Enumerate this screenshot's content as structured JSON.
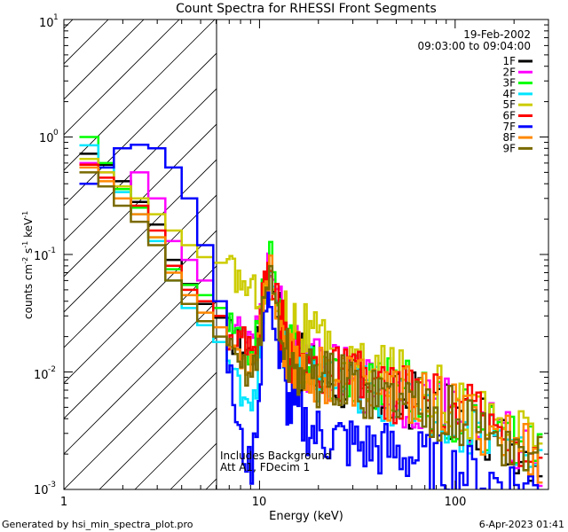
{
  "chart_data": {
    "type": "line",
    "title": "Count Spectra for RHESSI Front Segments",
    "xlabel": "Energy (keV)",
    "ylabel_parts": [
      "counts cm",
      "-2",
      " s",
      "-1",
      " keV",
      "-1"
    ],
    "xscale": "log",
    "yscale": "log",
    "xlim": [
      1,
      300
    ],
    "ylim": [
      0.001,
      10
    ],
    "x_ticks": [
      {
        "value": 1,
        "label": "1"
      },
      {
        "value": 10,
        "label": "10"
      },
      {
        "value": 100,
        "label": "100"
      }
    ],
    "y_ticks": [
      {
        "value": 0.001,
        "base": "10",
        "exp": "-3"
      },
      {
        "value": 0.01,
        "base": "10",
        "exp": "-2"
      },
      {
        "value": 0.1,
        "base": "10",
        "exp": "-1"
      },
      {
        "value": 1,
        "base": "10",
        "exp": "0"
      },
      {
        "value": 10,
        "base": "10",
        "exp": "1"
      }
    ],
    "hatched_region_keV": [
      1.2,
      6
    ],
    "date": "19-Feb-2002",
    "time_range": "09:03:00 to 09:04:00",
    "annotation_lines": [
      "Includes Background",
      "Att A1, FDecim 1"
    ],
    "footer_left": "Generated by hsi_min_spectra_plot.pro",
    "footer_right": "6-Apr-2023 01:41",
    "series": [
      {
        "name": "1F",
        "color": "#000000",
        "values": [
          0.72,
          0.58,
          0.42,
          0.28,
          0.18,
          0.09,
          0.056,
          0.038,
          0.029,
          0.022,
          0.018,
          0.016,
          0.014,
          0.02,
          0.05,
          0.075,
          0.03,
          0.015,
          0.012,
          0.01,
          0.009,
          0.008,
          0.007,
          0.006,
          0.0055,
          0.006,
          0.0045,
          0.004,
          0.003,
          0.0025,
          0.0018
        ]
      },
      {
        "name": "2F",
        "color": "#ff00ff",
        "values": [
          0.6,
          0.5,
          0.38,
          0.5,
          0.3,
          0.13,
          0.09,
          0.06,
          0.04,
          0.03,
          0.024,
          0.02,
          0.016,
          0.025,
          0.06,
          0.085,
          0.035,
          0.016,
          0.013,
          0.011,
          0.01,
          0.009,
          0.008,
          0.007,
          0.006,
          0.006,
          0.005,
          0.004,
          0.0033,
          0.0025,
          0.0018
        ]
      },
      {
        "name": "3F",
        "color": "#00ff00",
        "values": [
          1.0,
          0.6,
          0.36,
          0.25,
          0.14,
          0.075,
          0.055,
          0.045,
          0.035,
          0.025,
          0.02,
          0.017,
          0.015,
          0.022,
          0.07,
          0.095,
          0.032,
          0.016,
          0.013,
          0.011,
          0.0105,
          0.009,
          0.009,
          0.008,
          0.0075,
          0.006,
          0.005,
          0.004,
          0.0033,
          0.0025,
          0.0018
        ]
      },
      {
        "name": "4F",
        "color": "#00e5ff",
        "values": [
          0.85,
          0.55,
          0.34,
          0.22,
          0.13,
          0.06,
          0.035,
          0.025,
          0.018,
          0.012,
          0.008,
          0.007,
          0.006,
          0.01,
          0.04,
          0.06,
          0.025,
          0.012,
          0.01,
          0.009,
          0.008,
          0.0075,
          0.007,
          0.0065,
          0.006,
          0.0055,
          0.0045,
          0.0035,
          0.003,
          0.0022,
          0.0016
        ]
      },
      {
        "name": "5F",
        "color": "#cccc00",
        "values": [
          0.65,
          0.5,
          0.38,
          0.3,
          0.22,
          0.16,
          0.12,
          0.095,
          0.085,
          0.075,
          0.065,
          0.055,
          0.05,
          0.048,
          0.045,
          0.04,
          0.035,
          0.03,
          0.024,
          0.018,
          0.013,
          0.011,
          0.01,
          0.0095,
          0.009,
          0.008,
          0.0065,
          0.005,
          0.004,
          0.003,
          0.0022
        ]
      },
      {
        "name": "6F",
        "color": "#ff0000",
        "values": [
          0.58,
          0.45,
          0.3,
          0.26,
          0.16,
          0.08,
          0.05,
          0.04,
          0.03,
          0.022,
          0.02,
          0.018,
          0.016,
          0.022,
          0.06,
          0.08,
          0.03,
          0.015,
          0.012,
          0.011,
          0.0095,
          0.009,
          0.008,
          0.007,
          0.0065,
          0.006,
          0.005,
          0.0045,
          0.0035,
          0.0028,
          0.002
        ]
      },
      {
        "name": "7F",
        "color": "#0000ff",
        "values": [
          0.4,
          0.55,
          0.8,
          0.86,
          0.8,
          0.55,
          0.3,
          0.12,
          0.04,
          0.012,
          0.004,
          0.002,
          0.0015,
          0.006,
          0.03,
          0.045,
          0.012,
          0.005,
          0.004,
          0.003,
          0.0028,
          0.0025,
          0.0023,
          0.0022,
          0.002,
          0.0018,
          0.0016,
          0.0014,
          0.0012,
          0.0011,
          0.001
        ]
      },
      {
        "name": "8F",
        "color": "#ff8800",
        "values": [
          0.55,
          0.42,
          0.3,
          0.22,
          0.14,
          0.07,
          0.045,
          0.032,
          0.024,
          0.018,
          0.015,
          0.013,
          0.012,
          0.02,
          0.055,
          0.07,
          0.028,
          0.014,
          0.011,
          0.01,
          0.009,
          0.0085,
          0.008,
          0.007,
          0.0065,
          0.006,
          0.0048,
          0.004,
          0.0032,
          0.0025,
          0.0018
        ]
      },
      {
        "name": "9F",
        "color": "#7a6a00",
        "values": [
          0.5,
          0.38,
          0.26,
          0.19,
          0.12,
          0.06,
          0.038,
          0.027,
          0.02,
          0.015,
          0.012,
          0.011,
          0.01,
          0.016,
          0.045,
          0.065,
          0.025,
          0.012,
          0.01,
          0.009,
          0.0085,
          0.0078,
          0.007,
          0.0065,
          0.006,
          0.0055,
          0.0045,
          0.0038,
          0.003,
          0.0022,
          0.0016
        ]
      }
    ],
    "energy_grid_keV": [
      1.2,
      1.5,
      1.8,
      2.2,
      2.7,
      3.3,
      4.0,
      4.8,
      5.8,
      6.8,
      7.5,
      8.2,
      9.0,
      9.8,
      10.5,
      11.2,
      12.5,
      14,
      16,
      19,
      23,
      28,
      34,
      42,
      52,
      65,
      85,
      110,
      150,
      200,
      280
    ]
  }
}
